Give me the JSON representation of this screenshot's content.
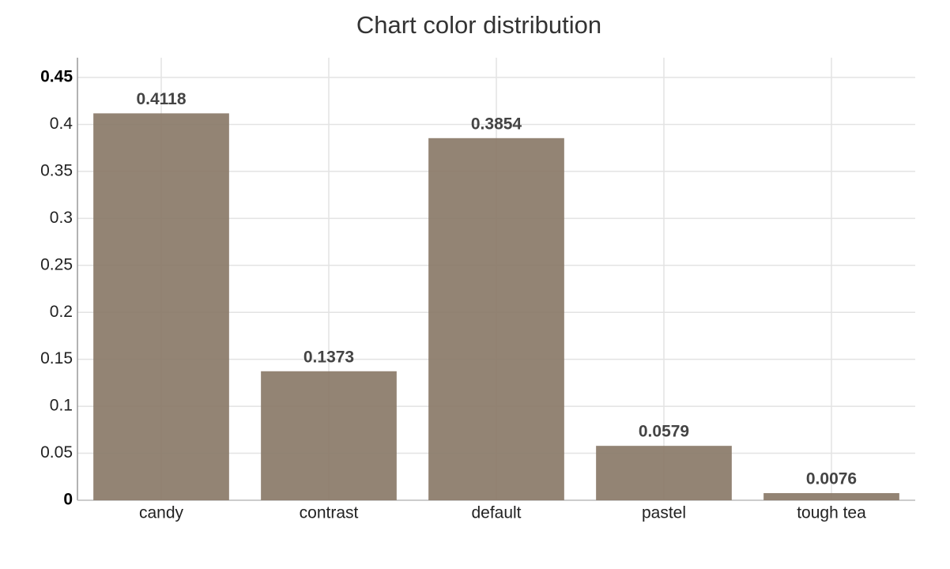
{
  "chart_data": {
    "type": "bar",
    "title": "Chart color distribution",
    "categories": [
      "candy",
      "contrast",
      "default",
      "pastel",
      "tough tea"
    ],
    "values": [
      0.4118,
      0.1373,
      0.3854,
      0.0579,
      0.0076
    ],
    "color": "#8a7968",
    "ylim": [
      0,
      0.45
    ],
    "yticks": [
      0,
      0.05,
      0.1,
      0.15,
      0.2,
      0.25,
      0.3,
      0.35,
      0.4,
      0.45
    ],
    "grid": true
  }
}
